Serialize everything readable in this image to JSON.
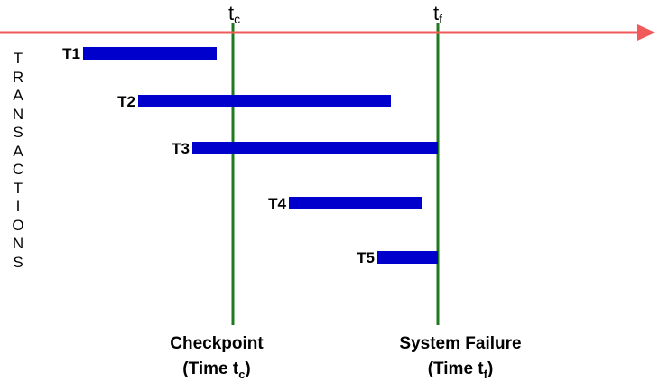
{
  "colors": {
    "timeline": "#f05a5a",
    "marker": "#1e7a1e",
    "bar": "#0000cc",
    "text": "#000000"
  },
  "axis_label": "TRANSACTIONS",
  "markers": [
    {
      "id": "tc",
      "top_base": "t",
      "top_sub": "c",
      "caption_line1": "Checkpoint",
      "caption_line2_base": "(Time t",
      "caption_line2_sub": "c",
      "caption_line2_end": ")"
    },
    {
      "id": "tf",
      "top_base": "t",
      "top_sub": "f",
      "caption_line1": "System Failure",
      "caption_line2_base": "(Time t",
      "caption_line2_sub": "f",
      "caption_line2_end": ")"
    }
  ],
  "transactions": [
    {
      "label": "T1"
    },
    {
      "label": "T2"
    },
    {
      "label": "T3"
    },
    {
      "label": "T4"
    },
    {
      "label": "T5"
    }
  ]
}
